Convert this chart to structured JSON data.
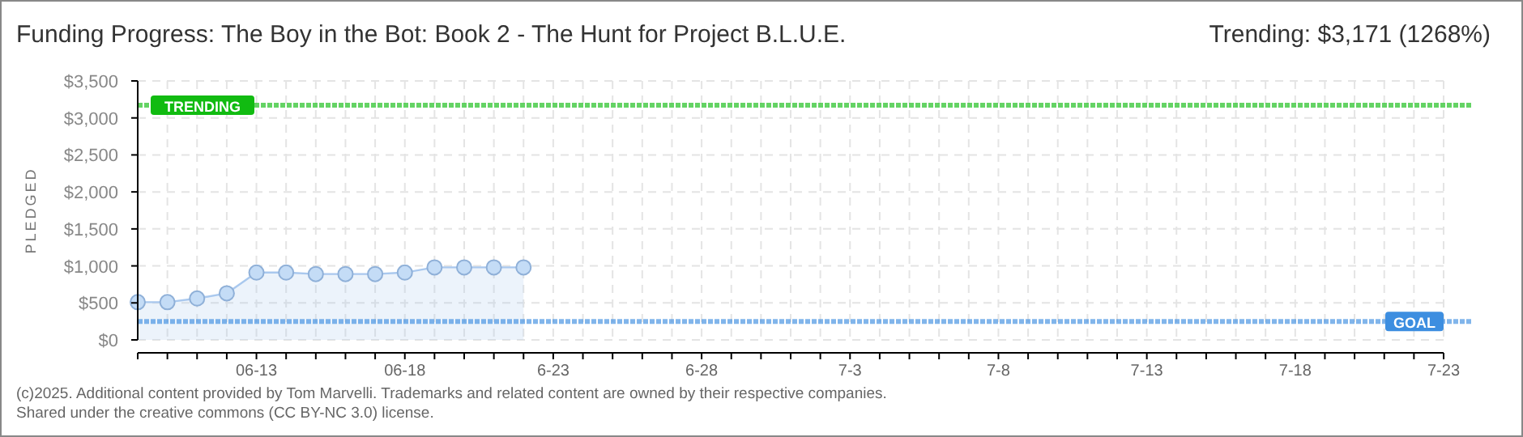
{
  "chart_data": {
    "type": "area",
    "title": "Funding Progress: The Boy in the Bot: Book 2 - The Hunt for Project B.L.U.E.",
    "subtitle": "Trending: $3,171 (1268%)",
    "ylabel": "PLEDGED",
    "x": [
      "2025-06-09",
      "2025-06-10",
      "2025-06-11",
      "2025-06-12",
      "2025-06-13",
      "2025-06-14",
      "2025-06-15",
      "2025-06-16",
      "2025-06-17",
      "2025-06-18",
      "2025-06-19",
      "2025-06-20",
      "2025-06-21",
      "2025-06-22"
    ],
    "series": [
      {
        "color": "#a9c8ee",
        "values": [
          510,
          510,
          560,
          630,
          910,
          910,
          890,
          890,
          890,
          910,
          980,
          980,
          980,
          980
        ]
      }
    ],
    "marker": "circle",
    "grid": true,
    "xlim": [
      "2025-06-09",
      "2025-07-23"
    ],
    "xticks": [
      {
        "value": "2025-06-09",
        "label": null
      },
      {
        "value": "2025-06-10",
        "label": null
      },
      {
        "value": "2025-06-11",
        "label": null
      },
      {
        "value": "2025-06-12",
        "label": null
      },
      {
        "value": "2025-06-13",
        "label": "06-13"
      },
      {
        "value": "2025-06-14",
        "label": null
      },
      {
        "value": "2025-06-15",
        "label": null
      },
      {
        "value": "2025-06-16",
        "label": null
      },
      {
        "value": "2025-06-17",
        "label": null
      },
      {
        "value": "2025-06-18",
        "label": "06-18"
      },
      {
        "value": "2025-06-19",
        "label": null
      },
      {
        "value": "2025-06-20",
        "label": null
      },
      {
        "value": "2025-06-21",
        "label": null
      },
      {
        "value": "2025-06-22",
        "label": null
      },
      {
        "value": "2025-06-23",
        "label": "6-23"
      },
      {
        "value": "2025-06-24",
        "label": null
      },
      {
        "value": "2025-06-25",
        "label": null
      },
      {
        "value": "2025-06-26",
        "label": null
      },
      {
        "value": "2025-06-27",
        "label": null
      },
      {
        "value": "2025-06-28",
        "label": "6-28"
      },
      {
        "value": "2025-06-29",
        "label": null
      },
      {
        "value": "2025-06-30",
        "label": null
      },
      {
        "value": "2025-07-01",
        "label": null
      },
      {
        "value": "2025-07-02",
        "label": null
      },
      {
        "value": "2025-07-03",
        "label": "7-3"
      },
      {
        "value": "2025-07-04",
        "label": null
      },
      {
        "value": "2025-07-05",
        "label": null
      },
      {
        "value": "2025-07-06",
        "label": null
      },
      {
        "value": "2025-07-07",
        "label": null
      },
      {
        "value": "2025-07-08",
        "label": "7-8"
      },
      {
        "value": "2025-07-09",
        "label": null
      },
      {
        "value": "2025-07-10",
        "label": null
      },
      {
        "value": "2025-07-11",
        "label": null
      },
      {
        "value": "2025-07-12",
        "label": null
      },
      {
        "value": "2025-07-13",
        "label": "7-13"
      },
      {
        "value": "2025-07-14",
        "label": null
      },
      {
        "value": "2025-07-15",
        "label": null
      },
      {
        "value": "2025-07-16",
        "label": null
      },
      {
        "value": "2025-07-17",
        "label": null
      },
      {
        "value": "2025-07-18",
        "label": "7-18"
      },
      {
        "value": "2025-07-19",
        "label": null
      },
      {
        "value": "2025-07-20",
        "label": null
      },
      {
        "value": "2025-07-21",
        "label": null
      },
      {
        "value": "2025-07-22",
        "label": null
      },
      {
        "value": "2025-07-23",
        "label": "7-23"
      }
    ],
    "ylim": [
      0,
      3500
    ],
    "yticks": [
      {
        "value": 0,
        "label": "$0"
      },
      {
        "value": 500,
        "label": "$500"
      },
      {
        "value": 1000,
        "label": "$1,000"
      },
      {
        "value": 1500,
        "label": "$1,500"
      },
      {
        "value": 2000,
        "label": "$2,000"
      },
      {
        "value": 2500,
        "label": "$2,500"
      },
      {
        "value": 3000,
        "label": "$3,000"
      },
      {
        "value": 3500,
        "label": "$3,500"
      }
    ],
    "ref_lines": [
      {
        "axis": "y",
        "value": 3171,
        "label": "TRENDING",
        "color": "#11bb11",
        "line_style": "dotted"
      },
      {
        "axis": "y",
        "value": 250,
        "label": "GOAL",
        "color": "#3d8ee0",
        "line_style": "dotted"
      }
    ],
    "annotations": [
      "(c)2025. Additional content provided by Tom Marvelli. Trademarks and related content are owned by their respective companies.",
      "Shared under the creative commons (CC BY-NC 3.0) license."
    ]
  }
}
